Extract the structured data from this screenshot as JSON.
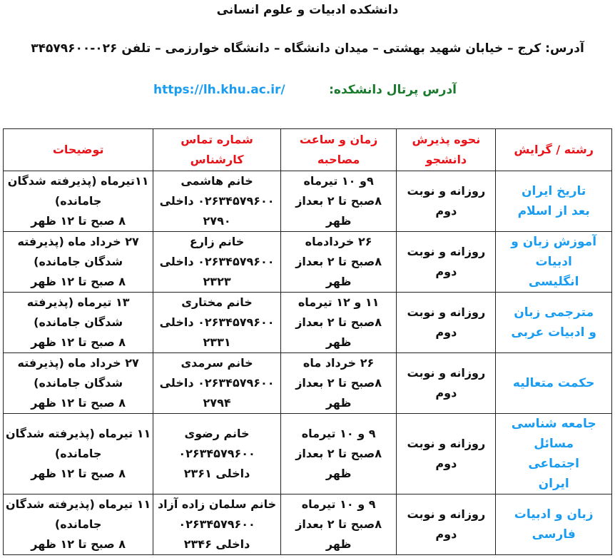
{
  "header": {
    "title": "دانشکده ادبیات و علوم انسانی",
    "address": "آدرس: کرج – خیابان شهید بهشتی – میدان دانشگاه – دانشگاه خوارزمی – تلفن ۰۲۶-۳۴۵۷۹۶۰۰",
    "portal_label": "آدرس پرتال دانشکده:",
    "portal_url": "https://lh.khu.ac.ir/"
  },
  "colors": {
    "header_text": "#e8141a",
    "major_text": "#1a9cf0",
    "portal_label": "#1a7a2e"
  },
  "table": {
    "columns": [
      "رشته / گرایش",
      "نحوه پذیرش دانشجو",
      "زمان و ساعت مصاحبه",
      "شماره تماس کارشناس",
      "توضیحات"
    ],
    "rows": [
      {
        "major": "تاریخ ایران بعد از اسلام",
        "admission": "روزانه و نوبت دوم",
        "time": [
          "۹و ۱۰ تیرماه",
          "۸صبح تا ۲ بعداز ظهر"
        ],
        "contact": [
          "خانم هاشمی",
          "۰۲۶۳۴۵۷۹۶۰۰ داخلی",
          "۲۷۹۰"
        ],
        "notes": [
          "۱۱تیرماه (پذیرفته شدگان",
          "جامانده)",
          "۸ صبح تا ۱۲ ظهر"
        ]
      },
      {
        "major": "آموزش زبان و ادبیات انگلیسی",
        "admission": "روزانه و نوبت دوم",
        "time": [
          "۲۶ خردادماه",
          "۸صبح تا ۲ بعداز ظهر"
        ],
        "contact": [
          "خانم زارع",
          "۰۲۶۳۴۵۷۹۶۰۰ داخلی",
          "۲۳۲۳"
        ],
        "notes": [
          "۲۷ خرداد ماه (پذیرفته",
          "شدگان جامانده)",
          "۸ صبح تا ۱۲ ظهر"
        ]
      },
      {
        "major": "مترجمی زبان و ادبیات عربی",
        "admission": "روزانه و نوبت دوم",
        "time": [
          "۱۱ و ۱۲ تیرماه",
          "۸صبح تا ۲ بعداز ظهر"
        ],
        "contact": [
          "خانم مختاری",
          "۰۲۶۳۴۵۷۹۶۰۰ داخلی",
          "۲۳۳۱"
        ],
        "notes": [
          "۱۳ تیرماه (پذیرفته",
          "شدگان جامانده)",
          "۸ صبح تا ۱۲ ظهر"
        ]
      },
      {
        "major": "حکمت متعالیه",
        "admission": "روزانه و نوبت دوم",
        "time": [
          "۲۶ خرداد ماه",
          "۸صبح تا ۲ بعداز ظهر"
        ],
        "contact": [
          "خانم سرمدی",
          "۰۲۶۳۴۵۷۹۶۰۰ داخلی",
          "۲۷۹۴"
        ],
        "notes": [
          "۲۷ خرداد ماه (پذیرفته",
          "شدگان جامانده)",
          "۸ صبح تا ۱۲ ظهر"
        ]
      },
      {
        "major": "جامعه شناسی مسائل اجتماعی ایران",
        "admission": "روزانه و نوبت دوم",
        "time": [
          "۹ و ۱۰ تیرماه",
          "۸صبح تا ۲ بعداز ظهر"
        ],
        "contact": [
          "خانم رضوی",
          "۰۲۶۳۴۵۷۹۶۰۰",
          "داخلی ۲۳۶۱"
        ],
        "notes": [
          "۱۱ تیرماه (پذیرفته شدگان",
          "جامانده)",
          "۸ صبح تا ۱۲ ظهر"
        ]
      },
      {
        "major": "زبان و ادبیات فارسی",
        "admission": "روزانه و نوبت دوم",
        "time": [
          "۹ و ۱۰ تیرماه",
          "۸صبح تا ۲ بعداز ظهر"
        ],
        "contact": [
          "خانم سلمان زاده آزاد",
          "۰۲۶۳۴۵۷۹۶۰۰",
          "داخلی ۲۳۴۶"
        ],
        "notes": [
          "۱۱ تیرماه (پذیرفته شدگان",
          "جامانده)",
          "۸ صبح تا ۱۲ ظهر"
        ]
      }
    ]
  }
}
